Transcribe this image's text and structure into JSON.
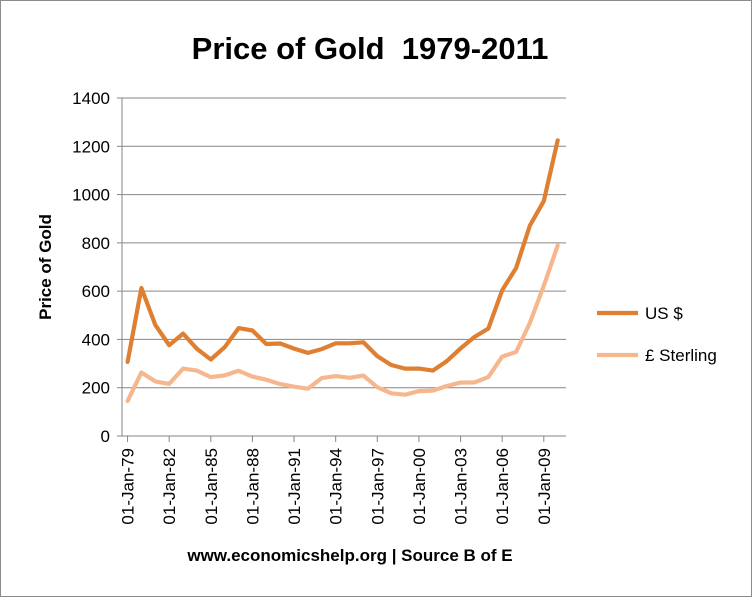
{
  "chart_data": {
    "type": "line",
    "title": "Price of Gold  1979-2011",
    "xlabel": "www.economicshelp.org | Source B of E",
    "ylabel": "Price of Gold",
    "ylim": [
      0,
      1400
    ],
    "yticks": [
      0,
      200,
      400,
      600,
      800,
      1000,
      1200,
      1400
    ],
    "grid": true,
    "legend_position": "right",
    "x": [
      1979,
      1980,
      1981,
      1982,
      1983,
      1984,
      1985,
      1986,
      1987,
      1988,
      1989,
      1990,
      1991,
      1992,
      1993,
      1994,
      1995,
      1996,
      1997,
      1998,
      1999,
      2000,
      2001,
      2002,
      2003,
      2004,
      2005,
      2006,
      2007,
      2008,
      2009,
      2010
    ],
    "xticks": [
      {
        "x": 1979,
        "label": "01-Jan-79"
      },
      {
        "x": 1982,
        "label": "01-Jan-82"
      },
      {
        "x": 1985,
        "label": "01-Jan-85"
      },
      {
        "x": 1988,
        "label": "01-Jan-88"
      },
      {
        "x": 1991,
        "label": "01-Jan-91"
      },
      {
        "x": 1994,
        "label": "01-Jan-94"
      },
      {
        "x": 1997,
        "label": "01-Jan-97"
      },
      {
        "x": 2000,
        "label": "01-Jan-00"
      },
      {
        "x": 2003,
        "label": "01-Jan-03"
      },
      {
        "x": 2006,
        "label": "01-Jan-06"
      },
      {
        "x": 2009,
        "label": "01-Jan-09"
      }
    ],
    "series": [
      {
        "name": "US $",
        "color": "#de7f31",
        "values": [
          307,
          613,
          460,
          376,
          424,
          361,
          317,
          368,
          447,
          437,
          381,
          383,
          362,
          344,
          360,
          384,
          384,
          388,
          331,
          294,
          279,
          279,
          271,
          310,
          363,
          410,
          445,
          604,
          696,
          872,
          973,
          1225
        ]
      },
      {
        "name": "£ Sterling",
        "color": "#f6b78e",
        "values": [
          145,
          263,
          226,
          216,
          279,
          271,
          244,
          251,
          270,
          246,
          233,
          215,
          204,
          196,
          240,
          248,
          241,
          250,
          202,
          177,
          171,
          186,
          188,
          207,
          221,
          222,
          244,
          329,
          348,
          469,
          622,
          789
        ]
      }
    ]
  }
}
